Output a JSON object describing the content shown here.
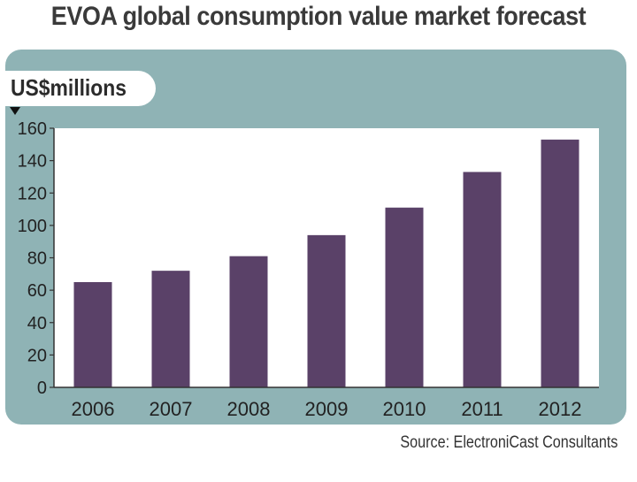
{
  "title": "EVOA global consumption value market forecast",
  "source": "Source: ElectroniCast Consultants",
  "colors": {
    "panel": "#8fb3b5",
    "plot_bg": "#ffffff",
    "bar": "#5a4168",
    "grid": "#cccccc",
    "title": "#3a3a3a"
  },
  "chart_data": {
    "type": "bar",
    "title": "EVOA global consumption value market forecast",
    "ylabel": "US$millions",
    "xlabel": "",
    "categories": [
      "2006",
      "2007",
      "2008",
      "2009",
      "2010",
      "2011",
      "2012"
    ],
    "values": [
      65,
      72,
      81,
      94,
      111,
      133,
      153
    ],
    "ylim": [
      0,
      160
    ],
    "yticks": [
      0,
      20,
      40,
      60,
      80,
      100,
      120,
      140,
      160
    ],
    "grid": false,
    "legend": "none"
  }
}
